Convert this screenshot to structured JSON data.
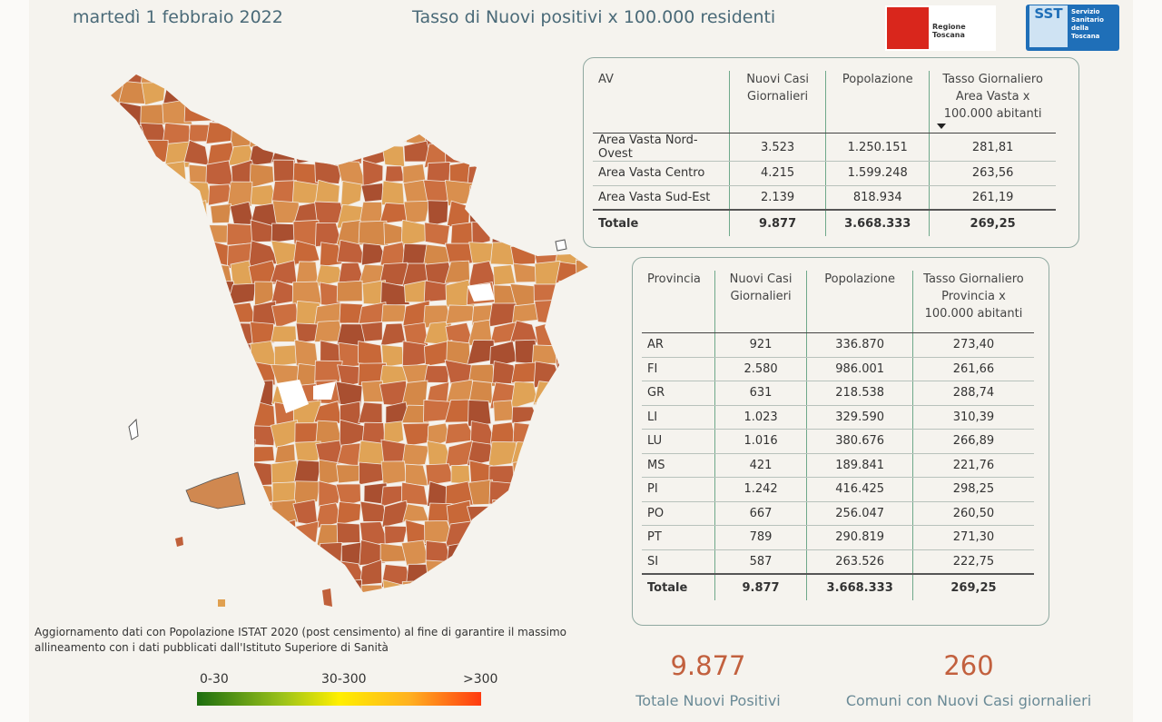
{
  "header": {
    "date": "martedì 1 febbraio 2022",
    "title": "Tasso di Nuovi positivi x 100.000 residenti",
    "logo_region": "Regione Toscana",
    "logo_sst": "SST",
    "logo_sst_text": "Servizio Sanitario della Toscana"
  },
  "av_table": {
    "columns": [
      "AV",
      "Nuovi Casi Giornalieri",
      "Popolazione",
      "Tasso Giornaliero Area Vasta x 100.000 abitanti"
    ],
    "rows": [
      [
        "Area Vasta Nord-Ovest",
        "3.523",
        "1.250.151",
        "281,81"
      ],
      [
        "Area Vasta Centro",
        "4.215",
        "1.599.248",
        "263,56"
      ],
      [
        "Area Vasta Sud-Est",
        "2.139",
        "818.934",
        "261,19"
      ]
    ],
    "total": [
      "Totale",
      "9.877",
      "3.668.333",
      "269,25"
    ]
  },
  "prov_table": {
    "columns": [
      "Provincia",
      "Nuovi Casi Giornalieri",
      "Popolazione",
      "Tasso Giornaliero Provincia x 100.000 abitanti"
    ],
    "rows": [
      [
        "AR",
        "921",
        "336.870",
        "273,40"
      ],
      [
        "FI",
        "2.580",
        "986.001",
        "261,66"
      ],
      [
        "GR",
        "631",
        "218.538",
        "288,74"
      ],
      [
        "LI",
        "1.023",
        "329.590",
        "310,39"
      ],
      [
        "LU",
        "1.016",
        "380.676",
        "266,89"
      ],
      [
        "MS",
        "421",
        "189.841",
        "221,76"
      ],
      [
        "PI",
        "1.242",
        "416.425",
        "298,25"
      ],
      [
        "PO",
        "667",
        "256.047",
        "260,50"
      ],
      [
        "PT",
        "789",
        "290.819",
        "271,30"
      ],
      [
        "SI",
        "587",
        "263.526",
        "222,75"
      ]
    ],
    "total": [
      "Totale",
      "9.877",
      "3.668.333",
      "269,25"
    ]
  },
  "note": "Aggiornamento dati con Popolazione ISTAT 2020 (post censimento) al fine di garantire il massimo allineamento con i dati pubblicati dall'Istituto Superiore di Sanità",
  "legend": {
    "labels": [
      "0-30",
      "30-300",
      ">300"
    ]
  },
  "kpis": [
    {
      "value": "9.877",
      "label": "Totale Nuovi Positivi"
    },
    {
      "value": "260",
      "label": "Comuni con Nuovi Casi giornalieri"
    }
  ]
}
